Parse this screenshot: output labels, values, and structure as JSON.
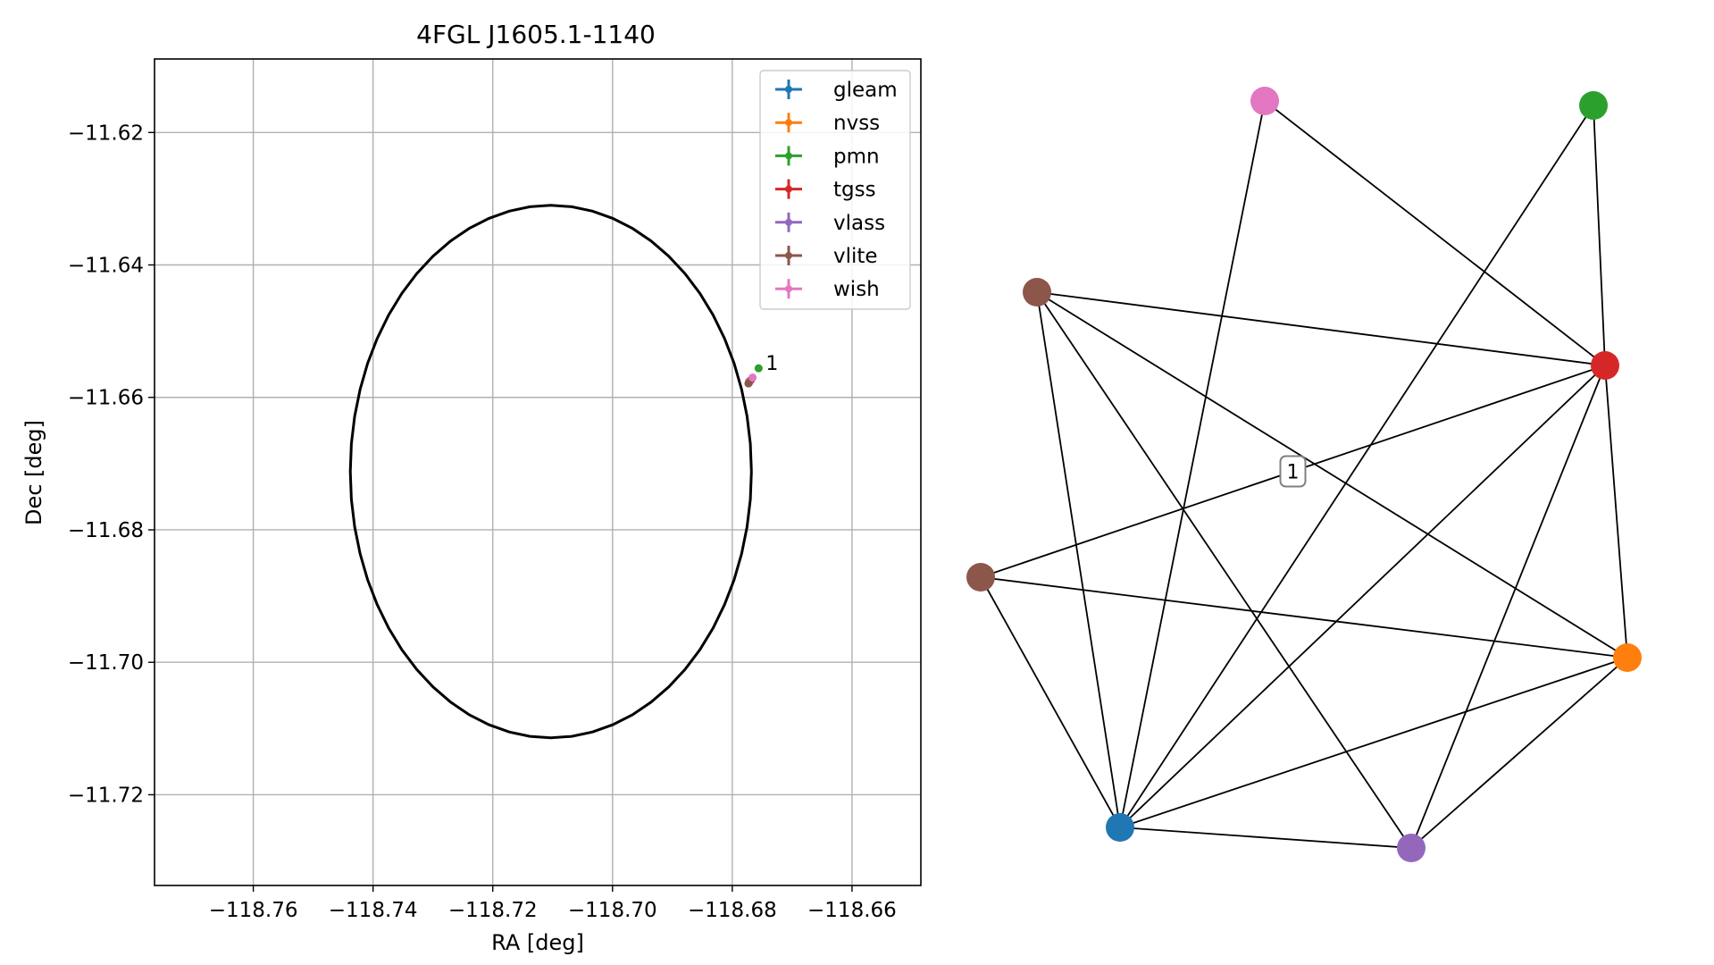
{
  "colors": {
    "gleam": "#1f77b4",
    "nvss": "#ff7f0e",
    "pmn": "#2ca02c",
    "tgss": "#d62728",
    "vlass": "#9467bd",
    "vlite": "#8c564b",
    "wish": "#e377c2",
    "grid": "#b0b0b0",
    "axes": "#000000"
  },
  "chart_data": [
    {
      "type": "scatter",
      "title": "4FGL J1605.1-1140",
      "xlabel": "RA [deg]",
      "ylabel": "Dec [deg]",
      "xlim": [
        -118.7765,
        -118.6485
      ],
      "ylim": [
        -11.7337,
        -11.6089
      ],
      "xticks": [
        -118.76,
        -118.74,
        -118.72,
        -118.7,
        -118.68,
        -118.66
      ],
      "xtick_labels": [
        "−118.76",
        "−118.74",
        "−118.72",
        "−118.70",
        "−118.68",
        "−118.66"
      ],
      "yticks": [
        -11.62,
        -11.64,
        -11.66,
        -11.68,
        -11.7,
        -11.72
      ],
      "ytick_labels": [
        "−11.62",
        "−11.64",
        "−11.66",
        "−11.68",
        "−11.70",
        "−11.72"
      ],
      "grid": true,
      "legend_position": "top-right",
      "ellipse": {
        "center_ra": -118.7103,
        "center_dec": -11.6712,
        "semi_ra": 0.0335,
        "semi_dec": 0.0402
      },
      "series": [
        {
          "name": "gleam",
          "x": [
            -118.6772
          ],
          "y": [
            -11.6578
          ]
        },
        {
          "name": "nvss",
          "x": [
            -118.6772
          ],
          "y": [
            -11.6576
          ]
        },
        {
          "name": "pmn",
          "x": [
            -118.6756
          ],
          "y": [
            -11.6556
          ]
        },
        {
          "name": "tgss",
          "x": [
            -118.6769
          ],
          "y": [
            -11.6574
          ]
        },
        {
          "name": "vlass",
          "x": [
            -118.6772
          ],
          "y": [
            -11.6577
          ]
        },
        {
          "name": "vlite",
          "x": [
            -118.6773
          ],
          "y": [
            -11.6579
          ]
        },
        {
          "name": "wish",
          "x": [
            -118.6766
          ],
          "y": [
            -11.657
          ]
        }
      ],
      "annotations": [
        {
          "text": "1",
          "x": -118.6744,
          "y": -11.6553
        }
      ]
    },
    {
      "type": "graph",
      "nodes": [
        {
          "id": "wish",
          "color": "#e377c2"
        },
        {
          "id": "pmn",
          "color": "#2ca02c"
        },
        {
          "id": "vlite_a",
          "color": "#8c564b"
        },
        {
          "id": "tgss",
          "color": "#d62728"
        },
        {
          "id": "vlite_b",
          "color": "#8c564b"
        },
        {
          "id": "nvss",
          "color": "#ff7f0e"
        },
        {
          "id": "gleam",
          "color": "#1f77b4"
        },
        {
          "id": "vlass",
          "color": "#9467bd"
        }
      ],
      "edges": [
        [
          "wish",
          "tgss"
        ],
        [
          "wish",
          "gleam"
        ],
        [
          "pmn",
          "tgss"
        ],
        [
          "pmn",
          "gleam"
        ],
        [
          "vlite_a",
          "tgss"
        ],
        [
          "vlite_a",
          "gleam"
        ],
        [
          "vlite_a",
          "vlass"
        ],
        [
          "vlite_a",
          "nvss"
        ],
        [
          "tgss",
          "vlite_b"
        ],
        [
          "tgss",
          "nvss"
        ],
        [
          "tgss",
          "gleam"
        ],
        [
          "tgss",
          "vlass"
        ],
        [
          "vlite_b",
          "nvss"
        ],
        [
          "vlite_b",
          "gleam"
        ],
        [
          "nvss",
          "gleam"
        ],
        [
          "nvss",
          "vlass"
        ],
        [
          "gleam",
          "vlass"
        ]
      ],
      "edge_labels": [
        {
          "edge": [
            "vlite_b",
            "tgss"
          ],
          "text": "1"
        }
      ]
    }
  ]
}
